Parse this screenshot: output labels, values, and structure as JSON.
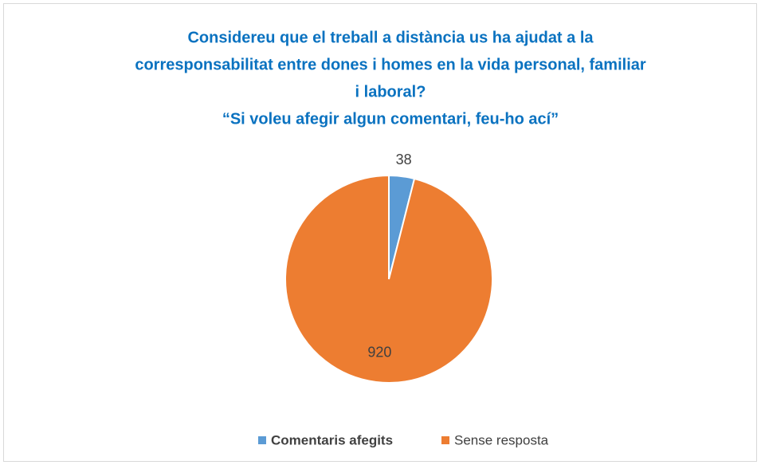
{
  "chart_data": {
    "type": "pie",
    "title": [
      "Considereu que el treball a distància us ha ajudat a la",
      "corresponsabilitat entre dones i homes en la vida personal, familiar",
      "i laboral?",
      "“Si voleu afegir algun comentari, feu-ho ací”"
    ],
    "categories": [
      "Comentaris afegits",
      "Sense resposta"
    ],
    "values": [
      38,
      920
    ],
    "colors": [
      "#5b9bd5",
      "#ed7d31"
    ],
    "legend": "bottom"
  }
}
